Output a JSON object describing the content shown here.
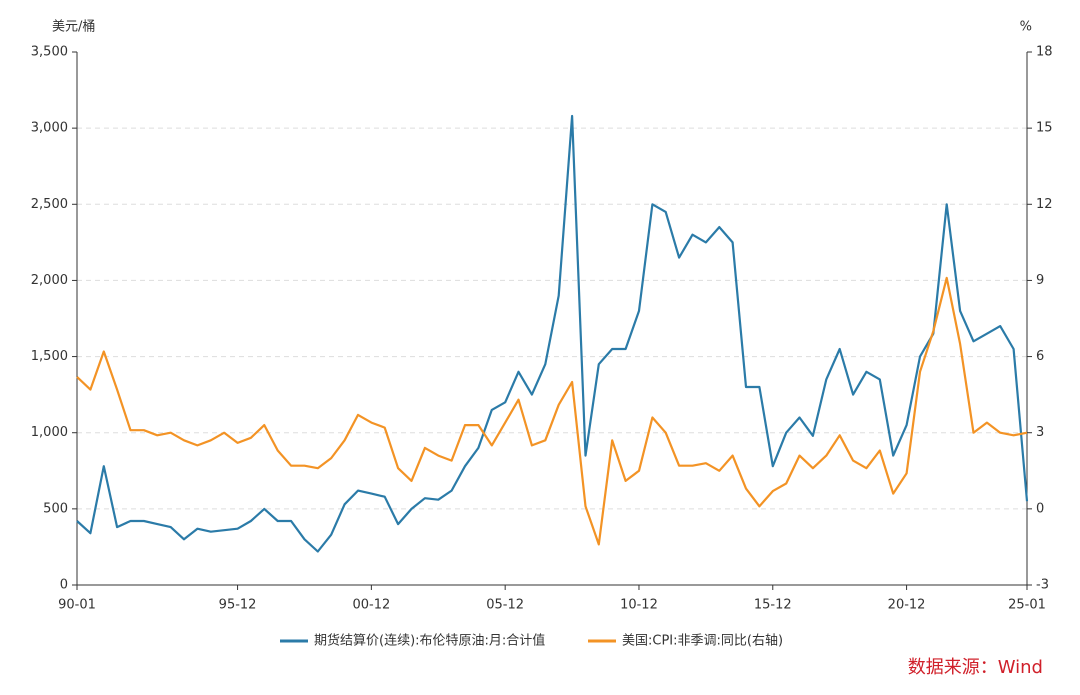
{
  "chart_data": {
    "type": "line",
    "y_label": "美元/桶",
    "y2_label": "%",
    "source": "数据来源：Wind",
    "categories": [
      "90-01",
      null,
      null,
      null,
      null,
      null,
      null,
      null,
      null,
      null,
      null,
      null,
      "95-12",
      null,
      null,
      null,
      null,
      null,
      null,
      null,
      null,
      null,
      "00-12",
      null,
      null,
      null,
      null,
      null,
      null,
      null,
      null,
      null,
      "05-12",
      null,
      null,
      null,
      null,
      null,
      null,
      null,
      null,
      null,
      "10-12",
      null,
      null,
      null,
      null,
      null,
      null,
      null,
      null,
      null,
      "15-12",
      null,
      null,
      null,
      null,
      null,
      null,
      null,
      null,
      null,
      "20-12",
      null,
      null,
      null,
      null,
      null,
      null,
      null,
      null,
      "25-01"
    ],
    "series": [
      {
        "name": "期货结算价(连续):布伦特原油:月:合计值",
        "color": "#2b7ba8",
        "axis": "y",
        "values": [
          420,
          340,
          780,
          380,
          420,
          420,
          400,
          380,
          300,
          370,
          350,
          360,
          370,
          420,
          500,
          420,
          420,
          300,
          220,
          330,
          530,
          620,
          600,
          580,
          400,
          500,
          570,
          560,
          620,
          780,
          900,
          1150,
          1200,
          1400,
          1250,
          1450,
          1900,
          3080,
          850,
          1450,
          1550,
          1550,
          1800,
          2500,
          2450,
          2150,
          2300,
          2250,
          2350,
          2250,
          1300,
          1300,
          780,
          1000,
          1100,
          980,
          1350,
          1550,
          1250,
          1400,
          1350,
          850,
          1050,
          1500,
          1650,
          2500,
          1800,
          1600,
          1650,
          1700,
          1550,
          550
        ]
      },
      {
        "name": "美国:CPI:非季调:同比(右轴)",
        "color": "#f39325",
        "axis": "y2",
        "values": [
          5.2,
          4.7,
          6.2,
          4.7,
          3.1,
          3.1,
          2.9,
          3.0,
          2.7,
          2.5,
          2.7,
          3.0,
          2.6,
          2.8,
          3.3,
          2.3,
          1.7,
          1.7,
          1.6,
          2.0,
          2.7,
          3.7,
          3.4,
          3.2,
          1.6,
          1.1,
          2.4,
          2.1,
          1.9,
          3.3,
          3.3,
          2.5,
          3.4,
          4.3,
          2.5,
          2.7,
          4.1,
          5.0,
          0.1,
          -1.4,
          2.7,
          1.1,
          1.5,
          3.6,
          3.0,
          1.7,
          1.7,
          1.8,
          1.5,
          2.1,
          0.8,
          0.1,
          0.7,
          1.0,
          2.1,
          1.6,
          2.1,
          2.9,
          1.9,
          1.6,
          2.3,
          0.6,
          1.4,
          5.4,
          7.0,
          9.1,
          6.5,
          3.0,
          3.4,
          3.0,
          2.9,
          3.0
        ]
      }
    ],
    "ylim": [
      0,
      3500
    ],
    "yticks": [
      0,
      500,
      {
        "value": 1000,
        "label": "1,000"
      },
      {
        "value": 1500,
        "label": "1,500"
      },
      {
        "value": 2000,
        "label": "2,000"
      },
      {
        "value": 2500,
        "label": "2,500"
      },
      {
        "value": 3000,
        "label": "3,000"
      },
      {
        "value": 3500,
        "label": "3,500"
      }
    ],
    "y2lim": [
      -3,
      18
    ],
    "y2ticks": [
      -3,
      0,
      3,
      6,
      9,
      12,
      15,
      18
    ],
    "grid": true
  }
}
